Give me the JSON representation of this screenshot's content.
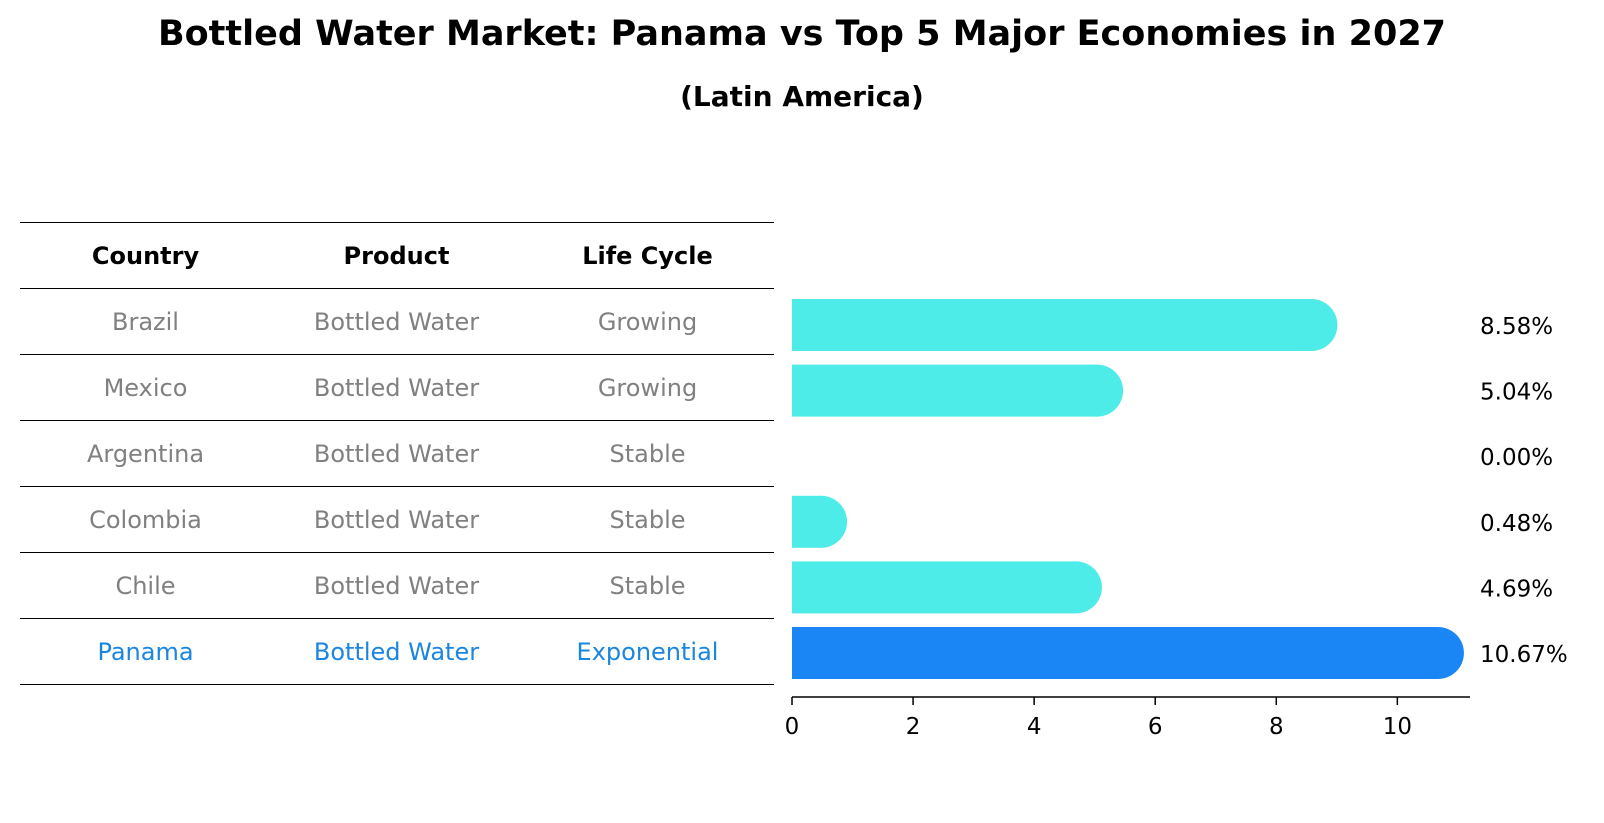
{
  "title": "Bottled Water Market: Panama vs Top 5 Major Economies in 2027",
  "subtitle": "(Latin America)",
  "table": {
    "headers": [
      "Country",
      "Product",
      "Life Cycle"
    ],
    "rows": [
      [
        "Brazil",
        "Bottled Water",
        "Growing"
      ],
      [
        "Mexico",
        "Bottled Water",
        "Growing"
      ],
      [
        "Argentina",
        "Bottled Water",
        "Stable"
      ],
      [
        "Colombia",
        "Bottled Water",
        "Stable"
      ],
      [
        "Chile",
        "Bottled Water",
        "Stable"
      ],
      [
        "Panama",
        "Bottled Water",
        "Exponential"
      ]
    ]
  },
  "chart_data": {
    "type": "bar",
    "orientation": "horizontal",
    "categories": [
      "Brazil",
      "Mexico",
      "Argentina",
      "Colombia",
      "Chile",
      "Panama"
    ],
    "values": [
      8.58,
      5.04,
      0.0,
      0.48,
      4.69,
      10.67
    ],
    "value_labels": [
      "8.58%",
      "5.04%",
      "0.00%",
      "0.48%",
      "4.69%",
      "10.67%"
    ],
    "highlight": "Panama",
    "xlim": [
      0,
      11.2
    ],
    "xticks": [
      0,
      2,
      4,
      6,
      8,
      10
    ],
    "colors": {
      "default": "#4dece8",
      "highlight": "#1a86f5"
    }
  }
}
